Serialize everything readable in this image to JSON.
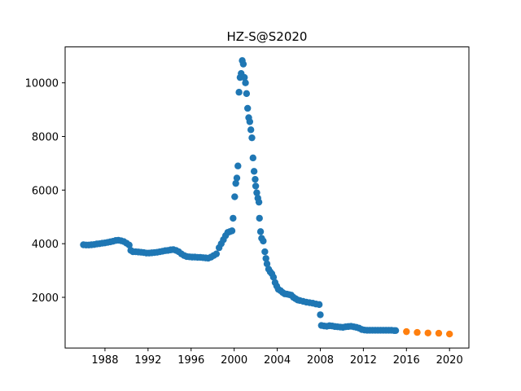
{
  "chart_data": {
    "type": "scatter",
    "title": "HZ-S@S2020",
    "xlim": [
      1984.3,
      2021.8
    ],
    "xticks": [
      1988,
      1992,
      1996,
      2000,
      2004,
      2008,
      2012,
      2016,
      2020
    ],
    "ylim": [
      110,
      11340
    ],
    "yticks": [
      2000,
      4000,
      6000,
      8000,
      10000
    ],
    "series": [
      {
        "color": "#1f77b4",
        "x": [
          1986.0,
          1986.25,
          1986.5,
          1986.75,
          1987.0,
          1987.25,
          1987.5,
          1987.75,
          1988.0,
          1988.25,
          1988.5,
          1988.75,
          1989.0,
          1989.25,
          1989.5,
          1989.75,
          1990.0,
          1990.25,
          1990.4,
          1990.6,
          1990.85,
          1991.1,
          1991.35,
          1991.6,
          1991.85,
          1992.1,
          1992.35,
          1992.6,
          1992.85,
          1993.1,
          1993.35,
          1993.6,
          1993.85,
          1994.1,
          1994.35,
          1994.6,
          1994.85,
          1995.1,
          1995.35,
          1995.6,
          1995.85,
          1996.1,
          1996.35,
          1996.6,
          1996.85,
          1997.1,
          1997.35,
          1997.6,
          1997.85,
          1998.1,
          1998.35,
          1998.6,
          1998.8,
          1999.0,
          1999.2,
          1999.4,
          1999.6,
          1999.8,
          1999.9,
          2000.05,
          2000.15,
          2000.25,
          2000.35,
          2000.45,
          2000.55,
          2000.65,
          2000.75,
          2000.85,
          2000.95,
          2001.05,
          2001.15,
          2001.25,
          2001.35,
          2001.45,
          2001.55,
          2001.65,
          2001.75,
          2001.85,
          2001.95,
          2002.0,
          2002.1,
          2002.2,
          2002.3,
          2002.35,
          2002.45,
          2002.55,
          2002.7,
          2002.85,
          2002.95,
          2003.05,
          2003.2,
          2003.35,
          2003.5,
          2003.65,
          2003.8,
          2003.95,
          2004.1,
          2004.3,
          2004.5,
          2004.7,
          2004.9,
          2005.1,
          2005.3,
          2005.5,
          2005.7,
          2005.9,
          2006.1,
          2006.4,
          2006.7,
          2007.0,
          2007.3,
          2007.6,
          2007.9,
          2008.0,
          2008.1,
          2008.35,
          2008.6,
          2008.85,
          2009.1,
          2009.35,
          2009.6,
          2009.85,
          2010.1,
          2010.35,
          2010.6,
          2010.85,
          2011.1,
          2011.35,
          2011.6,
          2011.85,
          2012.1,
          2012.35,
          2012.6,
          2012.85,
          2013.1,
          2013.35,
          2013.6,
          2013.85,
          2014.1,
          2014.35,
          2014.6,
          2014.85,
          2015.0
        ],
        "values": [
          3960,
          3950,
          3950,
          3960,
          3970,
          3990,
          4000,
          4020,
          4030,
          4050,
          4070,
          4090,
          4120,
          4130,
          4110,
          4080,
          4020,
          3950,
          3750,
          3700,
          3700,
          3690,
          3680,
          3670,
          3650,
          3650,
          3660,
          3670,
          3680,
          3700,
          3720,
          3740,
          3750,
          3770,
          3780,
          3750,
          3700,
          3620,
          3560,
          3520,
          3510,
          3500,
          3500,
          3490,
          3490,
          3480,
          3470,
          3460,
          3500,
          3560,
          3620,
          3850,
          4000,
          4150,
          4300,
          4420,
          4450,
          4480,
          4950,
          5750,
          6250,
          6450,
          6900,
          9650,
          10200,
          10350,
          10830,
          10700,
          10200,
          10000,
          9600,
          9050,
          8700,
          8550,
          8250,
          7950,
          7200,
          6700,
          6400,
          6150,
          5900,
          5700,
          5550,
          4950,
          4450,
          4200,
          4100,
          3700,
          3450,
          3250,
          3050,
          2950,
          2880,
          2750,
          2550,
          2420,
          2300,
          2250,
          2180,
          2130,
          2120,
          2100,
          2080,
          2000,
          1950,
          1900,
          1880,
          1850,
          1820,
          1800,
          1780,
          1750,
          1730,
          1350,
          950,
          930,
          920,
          940,
          930,
          910,
          900,
          890,
          880,
          900,
          910,
          920,
          900,
          880,
          850,
          800,
          780,
          770,
          770,
          770,
          770,
          770,
          770,
          770,
          770,
          770,
          770,
          760,
          760
        ]
      },
      {
        "color": "#ff7f0e",
        "x": [
          2016.0,
          2017.0,
          2018.0,
          2019.0,
          2020.0
        ],
        "values": [
          720,
          690,
          670,
          660,
          630
        ]
      }
    ]
  }
}
